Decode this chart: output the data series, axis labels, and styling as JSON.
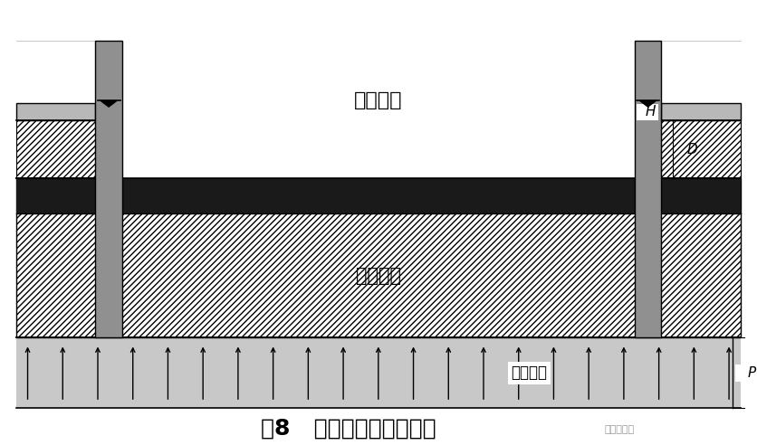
{
  "fig_width": 8.37,
  "fig_height": 4.92,
  "bg_color": "#ffffff",
  "title": "图8   地下水层分布示意图",
  "title_fontsize": 18,
  "colors": {
    "gray_light": "#c0c0c0",
    "gray_slab": "#b8b8b8",
    "dark_layer": "#1a1a1a",
    "pressure_bg": "#c8c8c8",
    "white": "#ffffff",
    "black": "#000000",
    "pile_color": "#909090",
    "pile_border": "#000000",
    "hatch_color": "#000000"
  },
  "labels": {
    "jikeng": "基坑底部",
    "butoushuiceng": "不透水层",
    "chengyashuiceng": "承压水层",
    "H": "H",
    "D": "D",
    "P": "P"
  },
  "watermark": "拉森钢板桩"
}
